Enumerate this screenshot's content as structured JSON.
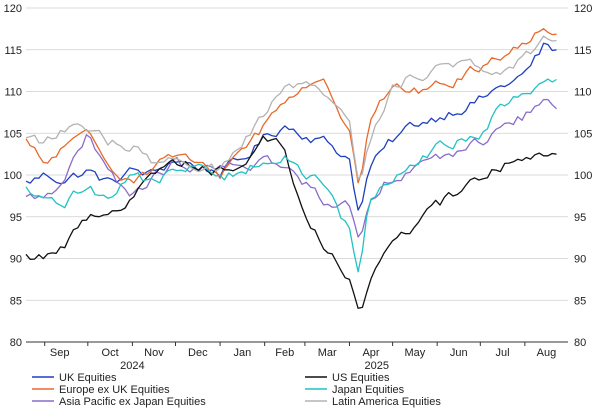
{
  "chart_data": {
    "type": "line",
    "ylim": [
      80,
      120
    ],
    "yticks": [
      80,
      85,
      90,
      95,
      100,
      105,
      110,
      115,
      120
    ],
    "months": [
      "Sep",
      "Oct",
      "Nov",
      "Dec",
      "Jan",
      "Feb",
      "Mar",
      "Apr",
      "May",
      "Jun",
      "Jul",
      "Aug"
    ],
    "years": [
      "2024",
      "2025"
    ],
    "x_start": "2024-08-19",
    "grid": "horizontal",
    "legend_position": "bottom",
    "x": [
      "2024-08-19",
      "2024-09-01",
      "2024-09-15",
      "2024-10-01",
      "2024-10-15",
      "2024-11-01",
      "2024-11-15",
      "2024-12-01",
      "2024-12-15",
      "2025-01-01",
      "2025-01-15",
      "2025-02-01",
      "2025-02-15",
      "2025-03-01",
      "2025-03-15",
      "2025-04-01",
      "2025-04-08",
      "2025-04-15",
      "2025-05-01",
      "2025-05-15",
      "2025-06-01",
      "2025-06-15",
      "2025-07-01",
      "2025-07-15",
      "2025-08-01",
      "2025-08-15",
      "2025-08-25"
    ],
    "series": [
      {
        "name": "UK Equities",
        "color": "#1f3fbf",
        "values": [
          99.0,
          100.0,
          99.5,
          100.5,
          99.0,
          100.5,
          100.0,
          102.0,
          101.0,
          100.5,
          101.5,
          104.5,
          106.0,
          105.0,
          104.0,
          102.0,
          95.0,
          101.0,
          104.0,
          106.0,
          107.0,
          108.0,
          109.0,
          110.5,
          112.0,
          115.5,
          114.5
        ]
      },
      {
        "name": "Europe ex UK Equities",
        "color": "#e8692a",
        "values": [
          104.0,
          101.0,
          103.5,
          104.5,
          101.5,
          99.5,
          101.0,
          102.5,
          101.0,
          100.0,
          103.0,
          106.0,
          109.0,
          111.0,
          110.5,
          106.0,
          99.0,
          107.0,
          110.5,
          110.0,
          110.5,
          111.5,
          113.0,
          114.5,
          115.5,
          118.0,
          117.0
        ]
      },
      {
        "name": "Asia Pacific ex Japan Equities",
        "color": "#8a6cc9",
        "values": [
          97.0,
          97.5,
          100.0,
          104.5,
          100.0,
          97.5,
          99.5,
          101.5,
          100.5,
          100.5,
          101.0,
          102.0,
          100.5,
          99.0,
          97.0,
          96.5,
          92.0,
          97.5,
          100.0,
          101.0,
          101.5,
          103.0,
          104.0,
          105.5,
          107.0,
          109.0,
          108.0
        ]
      },
      {
        "name": "US Equities",
        "color": "#111111",
        "values": [
          90.0,
          90.5,
          91.5,
          95.0,
          96.0,
          97.0,
          100.5,
          101.5,
          101.5,
          100.5,
          101.0,
          105.0,
          103.0,
          95.0,
          91.5,
          87.0,
          82.5,
          88.0,
          92.0,
          94.0,
          96.0,
          98.0,
          99.5,
          101.0,
          102.0,
          103.0,
          103.5
        ]
      },
      {
        "name": "Japan Equities",
        "color": "#22c2c2",
        "values": [
          98.0,
          96.5,
          96.5,
          99.0,
          97.0,
          100.5,
          99.0,
          100.5,
          101.0,
          99.5,
          100.5,
          102.0,
          102.0,
          100.0,
          99.0,
          93.0,
          88.0,
          97.0,
          100.0,
          101.0,
          103.0,
          104.0,
          104.5,
          108.0,
          110.0,
          111.5,
          111.0
        ]
      },
      {
        "name": "Latin America Equities",
        "color": "#b3b3b3",
        "values": [
          105.0,
          104.0,
          105.5,
          105.0,
          104.0,
          103.5,
          101.0,
          102.0,
          100.0,
          100.5,
          103.0,
          107.0,
          110.5,
          110.5,
          109.5,
          106.0,
          98.0,
          104.0,
          111.0,
          112.0,
          112.5,
          113.5,
          113.0,
          113.0,
          114.0,
          116.5,
          116.0
        ]
      }
    ]
  }
}
